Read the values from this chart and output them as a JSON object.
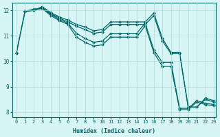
{
  "xlabel": "Humidex (Indice chaleur)",
  "bg_color": "#d8f5f5",
  "line_color": "#006666",
  "grid_color": "#b0d8d8",
  "xlim_min": -0.5,
  "xlim_max": 23.2,
  "ylim_min": 7.8,
  "ylim_max": 12.3,
  "yticks": [
    8,
    9,
    10,
    11,
    12
  ],
  "xticks": [
    0,
    1,
    2,
    3,
    4,
    5,
    6,
    7,
    8,
    9,
    10,
    11,
    12,
    13,
    14,
    15,
    16,
    17,
    18,
    19,
    20,
    21,
    22,
    23
  ],
  "series": [
    {
      "x": [
        1,
        2,
        3,
        4,
        5,
        6,
        7,
        8,
        9,
        10,
        11,
        12,
        13,
        14,
        15,
        16,
        17,
        18,
        19,
        20,
        21,
        22,
        23
      ],
      "y": [
        11.97,
        12.0,
        12.15,
        11.92,
        11.75,
        11.62,
        11.45,
        11.35,
        11.2,
        11.25,
        11.55,
        11.55,
        11.55,
        11.55,
        11.55,
        11.9,
        10.9,
        10.35,
        10.35,
        8.2,
        8.2,
        8.55,
        8.45
      ]
    },
    {
      "x": [
        1,
        2,
        3,
        4,
        5,
        6,
        7,
        8,
        9,
        10,
        11,
        12,
        13,
        14,
        15,
        16,
        17,
        18,
        19,
        20,
        21,
        22,
        23
      ],
      "y": [
        11.97,
        12.0,
        12.1,
        11.88,
        11.7,
        11.55,
        11.38,
        11.25,
        11.1,
        11.15,
        11.45,
        11.45,
        11.45,
        11.45,
        11.45,
        11.8,
        10.8,
        10.3,
        10.3,
        8.2,
        8.2,
        8.5,
        8.4
      ]
    },
    {
      "x": [
        0,
        1,
        2,
        3,
        4,
        5,
        6,
        7,
        8,
        9,
        10,
        11,
        12,
        13,
        14,
        15,
        16,
        17,
        18,
        19,
        20,
        21,
        22,
        23
      ],
      "y": [
        10.35,
        11.97,
        12.05,
        12.1,
        11.85,
        11.65,
        11.5,
        11.1,
        10.9,
        10.75,
        10.8,
        11.1,
        11.1,
        11.1,
        11.1,
        11.5,
        10.45,
        9.95,
        9.95,
        8.15,
        8.15,
        8.45,
        8.35,
        8.3
      ]
    },
    {
      "x": [
        0,
        1,
        2,
        3,
        4,
        5,
        6,
        7,
        8,
        9,
        10,
        11,
        12,
        13,
        14,
        15,
        16,
        17,
        18,
        19,
        20,
        21,
        22,
        23
      ],
      "y": [
        10.3,
        11.95,
        12.03,
        12.08,
        11.8,
        11.6,
        11.45,
        10.95,
        10.75,
        10.6,
        10.65,
        10.95,
        10.95,
        10.95,
        10.95,
        11.4,
        10.35,
        9.8,
        9.8,
        8.1,
        8.1,
        8.4,
        8.3,
        8.25
      ]
    }
  ]
}
